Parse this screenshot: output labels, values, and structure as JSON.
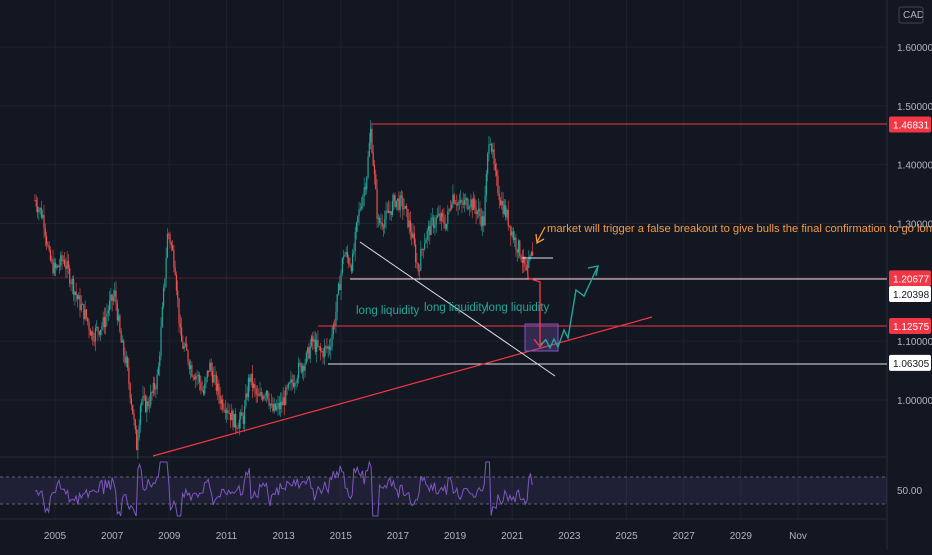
{
  "chart_data": {
    "type": "candlestick",
    "currency": "CAD",
    "y_range": [
      0.93,
      1.67
    ],
    "y_ticks": [
      "1.60000",
      "1.50000",
      "1.40000",
      "1.30000",
      "1.10000",
      "1.00000"
    ],
    "y_tick_values": [
      1.6,
      1.5,
      1.4,
      1.3,
      1.1,
      1.0
    ],
    "x_range": [
      2004.3,
      2032.8
    ],
    "x_ticks": [
      "2005",
      "2007",
      "2009",
      "2011",
      "2013",
      "2015",
      "2017",
      "2019",
      "2021",
      "2023",
      "2025",
      "2027",
      "2029",
      "Nov"
    ],
    "x_tick_values": [
      2005,
      2007,
      2009,
      2011,
      2013,
      2015,
      2017,
      2019,
      2021,
      2023,
      2025,
      2027,
      2029,
      2031
    ],
    "price_series": [
      [
        2004.3,
        1.34
      ],
      [
        2004.6,
        1.31
      ],
      [
        2004.8,
        1.24
      ],
      [
        2005.0,
        1.22
      ],
      [
        2005.3,
        1.24
      ],
      [
        2005.6,
        1.2
      ],
      [
        2005.8,
        1.17
      ],
      [
        2006.1,
        1.14
      ],
      [
        2006.3,
        1.11
      ],
      [
        2006.5,
        1.12
      ],
      [
        2006.7,
        1.13
      ],
      [
        2006.9,
        1.16
      ],
      [
        2007.1,
        1.18
      ],
      [
        2007.3,
        1.1
      ],
      [
        2007.5,
        1.06
      ],
      [
        2007.7,
        0.99
      ],
      [
        2007.85,
        0.92
      ],
      [
        2008.0,
        1.0
      ],
      [
        2008.2,
        0.99
      ],
      [
        2008.4,
        1.01
      ],
      [
        2008.6,
        1.04
      ],
      [
        2008.8,
        1.18
      ],
      [
        2008.95,
        1.29
      ],
      [
        2009.2,
        1.23
      ],
      [
        2009.4,
        1.1
      ],
      [
        2009.6,
        1.08
      ],
      [
        2009.8,
        1.05
      ],
      [
        2010.0,
        1.04
      ],
      [
        2010.2,
        1.01
      ],
      [
        2010.4,
        1.06
      ],
      [
        2010.6,
        1.03
      ],
      [
        2010.8,
        1.0
      ],
      [
        2011.0,
        0.99
      ],
      [
        2011.3,
        0.96
      ],
      [
        2011.6,
        0.97
      ],
      [
        2011.8,
        1.04
      ],
      [
        2012.1,
        1.0
      ],
      [
        2012.4,
        1.02
      ],
      [
        2012.6,
        0.98
      ],
      [
        2012.9,
        0.99
      ],
      [
        2013.2,
        1.02
      ],
      [
        2013.5,
        1.05
      ],
      [
        2013.8,
        1.07
      ],
      [
        2014.0,
        1.1
      ],
      [
        2014.3,
        1.08
      ],
      [
        2014.6,
        1.09
      ],
      [
        2014.8,
        1.14
      ],
      [
        2015.1,
        1.25
      ],
      [
        2015.4,
        1.23
      ],
      [
        2015.6,
        1.31
      ],
      [
        2015.9,
        1.38
      ],
      [
        2016.05,
        1.46
      ],
      [
        2016.3,
        1.3
      ],
      [
        2016.6,
        1.31
      ],
      [
        2016.9,
        1.34
      ],
      [
        2017.2,
        1.33
      ],
      [
        2017.5,
        1.28
      ],
      [
        2017.7,
        1.22
      ],
      [
        2017.9,
        1.27
      ],
      [
        2018.2,
        1.3
      ],
      [
        2018.4,
        1.31
      ],
      [
        2018.7,
        1.3
      ],
      [
        2018.9,
        1.35
      ],
      [
        2019.2,
        1.33
      ],
      [
        2019.5,
        1.34
      ],
      [
        2019.8,
        1.32
      ],
      [
        2020.0,
        1.3
      ],
      [
        2020.2,
        1.46
      ],
      [
        2020.4,
        1.38
      ],
      [
        2020.6,
        1.34
      ],
      [
        2020.9,
        1.3
      ],
      [
        2021.1,
        1.27
      ],
      [
        2021.3,
        1.25
      ],
      [
        2021.5,
        1.21
      ],
      [
        2021.65,
        1.24
      ],
      [
        2021.75,
        1.26
      ]
    ],
    "horizontal_levels": [
      {
        "value": 1.46831,
        "color": "#f23645"
      },
      {
        "value": 1.20677,
        "color": "#f23645"
      },
      {
        "value": 1.20398,
        "color": "#ffffff"
      },
      {
        "value": 1.12575,
        "color": "#f23645"
      },
      {
        "value": 1.06305,
        "color": "#ffffff"
      }
    ],
    "annotation": "market will trigger a false breakout to give bulls the final confirmation  to go long",
    "liquidity_labels": [
      "long  liquidity",
      "long  liquidity",
      "long  liquidity"
    ],
    "rsi_level_label": "50.00",
    "colors": {
      "background": "#131722",
      "up": "#26a69a",
      "down": "#ef5350",
      "red_line": "#f23645",
      "white_line": "#e0e3eb",
      "annotation": "#f59b42",
      "rsi": "#7e57c2",
      "projection": "#26a69a"
    }
  }
}
